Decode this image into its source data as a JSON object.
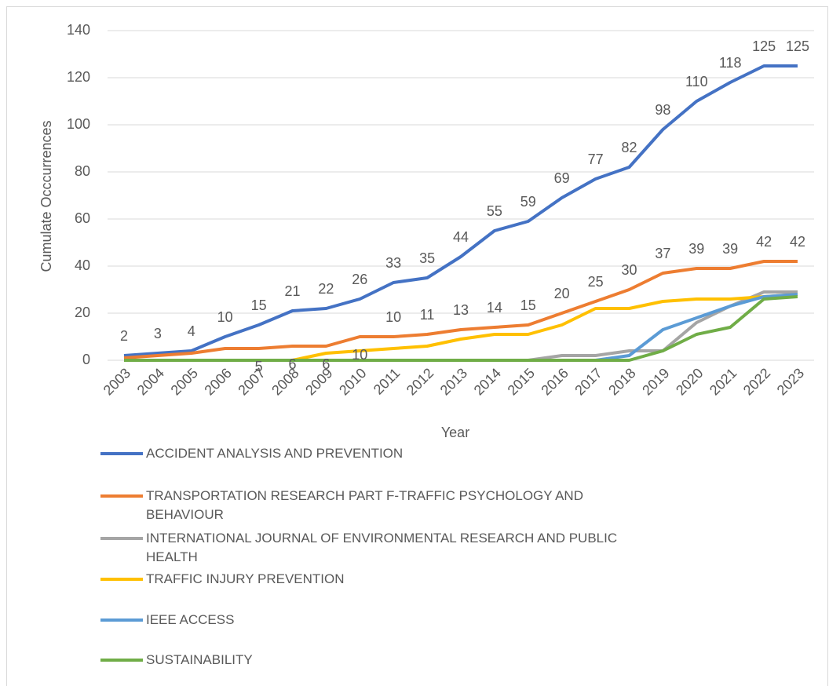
{
  "chart_data": {
    "type": "line",
    "x_label": "Year",
    "y_label": "Cumulate Occcurrences",
    "categories": [
      "2003",
      "2004",
      "2005",
      "2006",
      "2007",
      "2008",
      "2009",
      "2010",
      "2011",
      "2012",
      "2013",
      "2014",
      "2015",
      "2016",
      "2017",
      "2018",
      "2019",
      "2020",
      "2021",
      "2022",
      "2023"
    ],
    "ylim": [
      0,
      140
    ],
    "yticks": [
      0,
      20,
      40,
      60,
      80,
      100,
      120,
      140
    ],
    "grid": true,
    "series": [
      {
        "name": "ACCIDENT ANALYSIS AND PREVENTION",
        "color": "#4472c4",
        "values": [
          2,
          3,
          4,
          10,
          15,
          21,
          22,
          26,
          33,
          35,
          44,
          55,
          59,
          69,
          77,
          82,
          98,
          110,
          118,
          125,
          125
        ],
        "value_labels": [
          "2",
          "3",
          "4",
          "10",
          "15",
          "21",
          "22",
          "26",
          "33",
          "35",
          "44",
          "55",
          "59",
          "69",
          "77",
          "82",
          "98",
          "110",
          "118",
          "125",
          "125"
        ]
      },
      {
        "name": "TRANSPORTATION RESEARCH PART F-TRAFFIC PSYCHOLOGY AND BEHAVIOUR",
        "color": "#ed7d31",
        "values": [
          1,
          2,
          3,
          5,
          5,
          6,
          6,
          10,
          10,
          11,
          13,
          14,
          15,
          20,
          25,
          30,
          37,
          39,
          39,
          42,
          42
        ],
        "value_labels": [
          null,
          null,
          null,
          null,
          "5",
          "6",
          "6",
          "10",
          "10",
          "11",
          "13",
          "14",
          "15",
          "20",
          "25",
          "30",
          "37",
          "39",
          "39",
          "42",
          "42"
        ]
      },
      {
        "name": "INTERNATIONAL JOURNAL OF ENVIRONMENTAL RESEARCH AND PUBLIC HEALTH",
        "color": "#a5a5a5",
        "values": [
          0,
          0,
          0,
          0,
          0,
          0,
          0,
          0,
          0,
          0,
          0,
          0,
          0,
          2,
          2,
          4,
          4,
          16,
          23,
          29,
          29
        ]
      },
      {
        "name": "TRAFFIC INJURY PREVENTION",
        "color": "#ffc000",
        "values": [
          0,
          0,
          0,
          0,
          0,
          0,
          3,
          4,
          5,
          6,
          9,
          11,
          11,
          15,
          22,
          22,
          25,
          26,
          26,
          27,
          28
        ]
      },
      {
        "name": "IEEE ACCESS",
        "color": "#5b9bd5",
        "values": [
          0,
          0,
          0,
          0,
          0,
          0,
          0,
          0,
          0,
          0,
          0,
          0,
          0,
          0,
          0,
          2,
          13,
          18,
          23,
          27,
          28
        ]
      },
      {
        "name": "SUSTAINABILITY",
        "color": "#70ad47",
        "values": [
          0,
          0,
          0,
          0,
          0,
          0,
          0,
          0,
          0,
          0,
          0,
          0,
          0,
          0,
          0,
          0,
          4,
          11,
          14,
          26,
          27
        ]
      }
    ]
  }
}
